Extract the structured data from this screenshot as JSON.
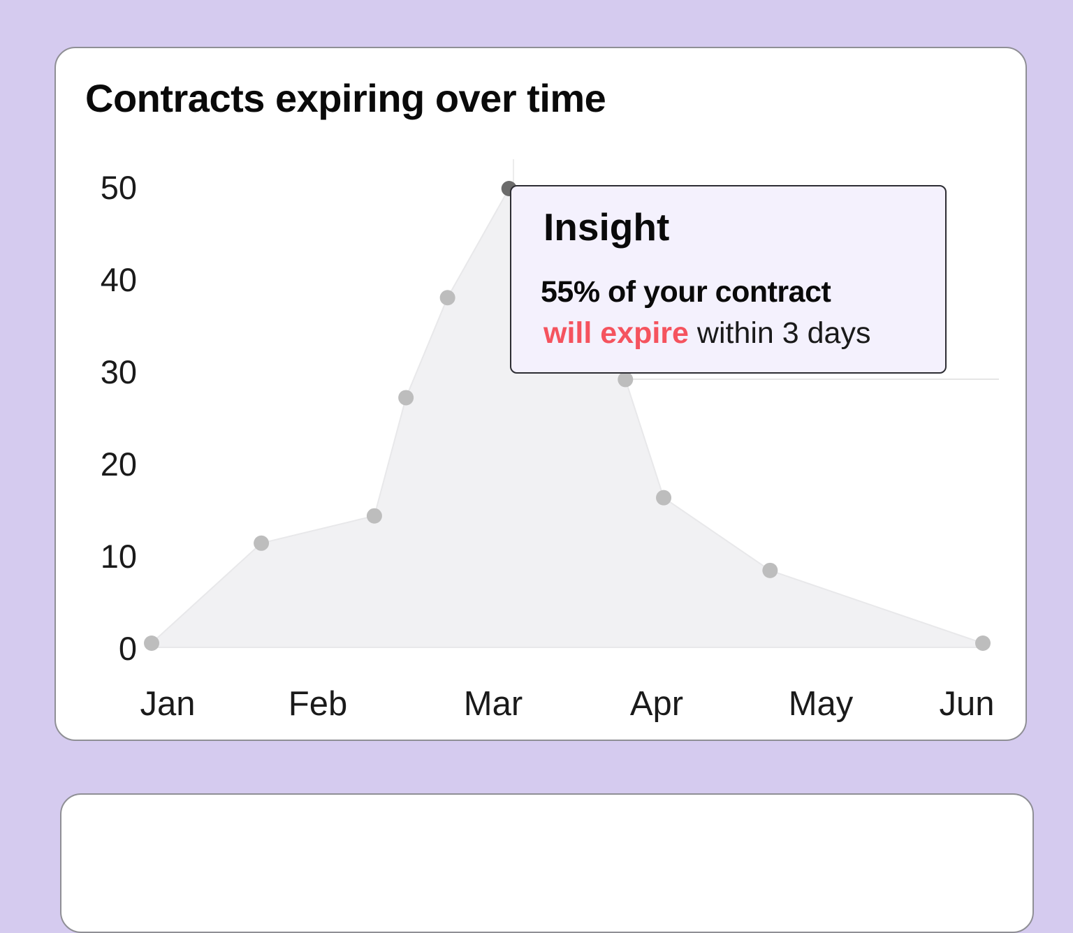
{
  "colors": {
    "background": "#d5cbef",
    "area_fill": "#f1f1f3",
    "point": "#bdbdbd",
    "point_active": "#6b6b6b",
    "highlight": "#f5535e"
  },
  "chart_data": {
    "type": "area",
    "title": "Contracts expiring over time",
    "xlabel": "",
    "ylabel": "",
    "x_tick_labels": [
      "Jan",
      "Feb",
      "Mar",
      "Apr",
      "May",
      "Jun"
    ],
    "y_ticks": [
      "0",
      "10",
      "20",
      "30",
      "40",
      "50"
    ],
    "ylim": [
      0,
      50
    ],
    "xlim_months": [
      0,
      5
    ],
    "grid": false,
    "legend": "none",
    "series": [
      {
        "x": [
          0,
          0.66,
          1.34,
          1.53,
          1.78,
          2.15,
          2.85,
          3.08,
          3.72,
          5
        ],
        "values": [
          0,
          11,
          14,
          27,
          38,
          50,
          29,
          16,
          8,
          0
        ]
      }
    ],
    "active_point_index": 5,
    "tooltip": {
      "title": "Insight",
      "line1": "55% of your contract",
      "line2_highlight": "will expire",
      "line2_rest": " within 3 days"
    }
  }
}
